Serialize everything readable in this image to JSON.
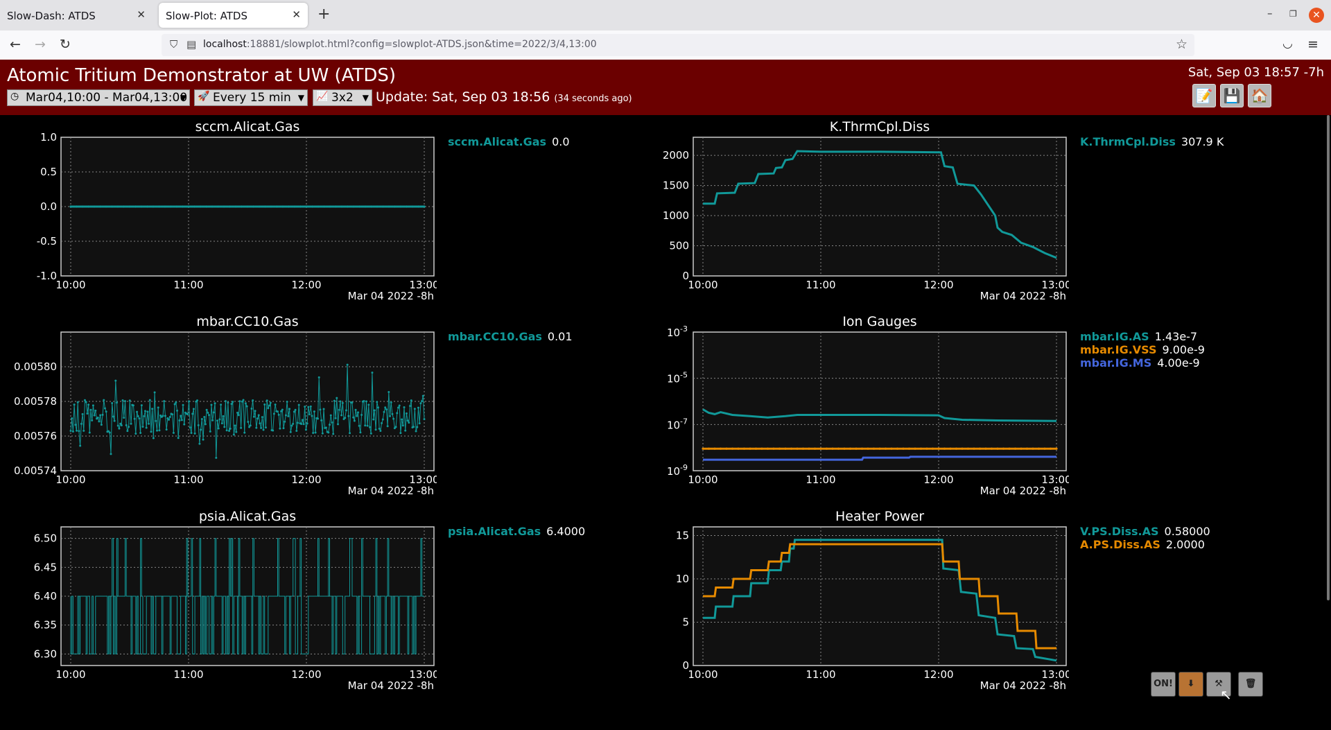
{
  "browser": {
    "tabs": [
      {
        "title": "Slow-Dash: ATDS",
        "active": false
      },
      {
        "title": "Slow-Plot: ATDS",
        "active": true
      }
    ],
    "new_tab": "+",
    "url_host": "localhost",
    "url_rest": ":18881/slowplot.html?config=slowplot-ATDS.json&time=2022/3/4,13:00",
    "icons": {
      "back": "←",
      "forward": "→",
      "reload": "↻",
      "shield": "⛉",
      "page": "▤",
      "star": "☆",
      "pocket": "◡",
      "menu": "≡",
      "close": "✕",
      "minimize": "–",
      "restore": "❐"
    }
  },
  "header": {
    "title": "Atomic Tritium Demonstrator at UW (ATDS)",
    "clock": "Sat, Sep 03 18:57 -7h",
    "time_range": "Mar04,10:00 - Mar04,13:00",
    "refresh": "Every 15 min",
    "layout": "3x2",
    "update": "Update: Sat, Sep 03 18:56",
    "update_ago": "(34 seconds ago)",
    "icons": {
      "clock": "◷",
      "rocket": "🚀",
      "chart": "📈",
      "edit": "📝",
      "save": "💾",
      "home": "🏠"
    }
  },
  "colors": {
    "teal": "#119999",
    "orange": "#e68a00",
    "blue": "#4466dd",
    "frame": "#cccccc",
    "grid": "#888888",
    "header_bg": "#6b0000"
  },
  "bottom_tools": {
    "on_label": "ON!",
    "icons": [
      "on-off",
      "download",
      "tools",
      "trash"
    ]
  },
  "plots": [
    {
      "id": "p1",
      "title": "sccm.Alicat.Gas",
      "footer": "Mar 04 2022 -8h",
      "xticks": [
        "10:00",
        "11:00",
        "12:00",
        "13:00"
      ],
      "yscale": "linear",
      "ylim": [
        -1.0,
        1.0
      ],
      "yticks": [
        "1.0",
        "0.5",
        "0.0",
        "-0.5",
        "-1.0"
      ],
      "legend": [
        {
          "name": "sccm.Alicat.Gas",
          "value": "0.0",
          "color": "#119999"
        }
      ],
      "chart_data": {
        "type": "line",
        "x_range": [
          "10:00",
          "13:00"
        ],
        "series": [
          {
            "name": "sccm.Alicat.Gas",
            "kind": "flat",
            "x": [
              0,
              3
            ],
            "y": [
              0.0,
              0.0
            ]
          }
        ]
      }
    },
    {
      "id": "p2",
      "title": "K.ThrmCpl.Diss",
      "footer": "Mar 04 2022 -8h",
      "xticks": [
        "10:00",
        "11:00",
        "12:00",
        "13:00"
      ],
      "yscale": "linear",
      "ylim": [
        0,
        2300
      ],
      "yticks": [
        "2000",
        "1500",
        "1000",
        "500",
        "0"
      ],
      "legend": [
        {
          "name": "K.ThrmCpl.Diss",
          "value": "307.9 K",
          "color": "#119999"
        }
      ],
      "chart_data": {
        "type": "line",
        "x_range": [
          "10:00",
          "13:00"
        ],
        "series": [
          {
            "name": "K.ThrmCpl.Diss",
            "kind": "line",
            "x": [
              0,
              0.1,
              0.12,
              0.27,
              0.3,
              0.44,
              0.47,
              0.6,
              0.62,
              0.67,
              0.7,
              0.76,
              0.8,
              1.0,
              1.5,
              2.02,
              2.05,
              2.12,
              2.16,
              2.3,
              2.36,
              2.48,
              2.5,
              2.54,
              2.62,
              2.7,
              2.8,
              2.9,
              3.0
            ],
            "y": [
              1200,
              1200,
              1370,
              1380,
              1530,
              1540,
              1690,
              1700,
              1790,
              1800,
              1920,
              1940,
              2070,
              2060,
              2060,
              2050,
              1820,
              1800,
              1530,
              1500,
              1350,
              1000,
              800,
              730,
              680,
              550,
              480,
              380,
              300
            ]
          }
        ]
      }
    },
    {
      "id": "p3",
      "title": "mbar.CC10.Gas",
      "footer": "Mar 04 2022 -8h",
      "xticks": [
        "10:00",
        "11:00",
        "12:00",
        "13:00"
      ],
      "yscale": "linear",
      "ylim": [
        0.00574,
        0.00582
      ],
      "yticks": [
        "0.00580",
        "0.00578",
        "0.00576",
        "0.00574"
      ],
      "legend": [
        {
          "name": "mbar.CC10.Gas",
          "value": "0.01",
          "color": "#119999"
        }
      ],
      "chart_data": {
        "type": "line",
        "x_range": [
          "10:00",
          "13:00"
        ],
        "series": [
          {
            "name": "mbar.CC10.Gas",
            "kind": "noise",
            "center": 0.005771,
            "spread": 1.8e-05,
            "points": 300
          }
        ]
      }
    },
    {
      "id": "p4",
      "title": "Ion Gauges",
      "footer": "Mar 04 2022 -8h",
      "xticks": [
        "10:00",
        "11:00",
        "12:00",
        "13:00"
      ],
      "yscale": "log",
      "ylim": [
        -9,
        -3
      ],
      "yticks": [
        "-3",
        "-5",
        "-7",
        "-9"
      ],
      "legend": [
        {
          "name": "mbar.IG.AS",
          "value": "1.43e-7",
          "color": "#119999"
        },
        {
          "name": "mbar.IG.VSS",
          "value": "9.00e-9",
          "color": "#e68a00"
        },
        {
          "name": "mbar.IG.MS",
          "value": "4.00e-9",
          "color": "#4466dd"
        }
      ],
      "chart_data": {
        "type": "line",
        "x_range": [
          "10:00",
          "13:00"
        ],
        "series": [
          {
            "name": "mbar.IG.AS",
            "kind": "line",
            "x": [
              0,
              0.05,
              0.1,
              0.15,
              0.25,
              0.4,
              0.55,
              0.7,
              0.8,
              1.0,
              1.5,
              2.0,
              2.05,
              2.2,
              2.5,
              3.0
            ],
            "y": [
              4.5e-07,
              3.2e-07,
              2.8e-07,
              3.4e-07,
              2.6e-07,
              2.3e-07,
              2e-07,
              2.3e-07,
              2.6e-07,
              2.6e-07,
              2.6e-07,
              2.5e-07,
              1.9e-07,
              1.6e-07,
              1.5e-07,
              1.43e-07
            ]
          },
          {
            "name": "mbar.IG.VSS",
            "kind": "flat",
            "x": [
              0,
              3
            ],
            "y": [
              9e-09,
              9e-09
            ]
          },
          {
            "name": "mbar.IG.MS",
            "kind": "line",
            "x": [
              0,
              1.35,
              1.36,
              1.75,
              1.76,
              3.0
            ],
            "y": [
              3e-09,
              3e-09,
              3.7e-09,
              3.7e-09,
              4e-09,
              4e-09
            ]
          }
        ]
      }
    },
    {
      "id": "p5",
      "title": "psia.Alicat.Gas",
      "footer": "Mar 04 2022 -8h",
      "xticks": [
        "10:00",
        "11:00",
        "12:00",
        "13:00"
      ],
      "yscale": "linear",
      "ylim": [
        6.28,
        6.52
      ],
      "yticks": [
        "6.50",
        "6.45",
        "6.40",
        "6.35",
        "6.30"
      ],
      "legend": [
        {
          "name": "psia.Alicat.Gas",
          "value": "6.4000",
          "color": "#119999"
        }
      ],
      "chart_data": {
        "type": "line",
        "x_range": [
          "10:00",
          "13:00"
        ],
        "series": [
          {
            "name": "psia.Alicat.Gas",
            "kind": "toggle",
            "base": 6.4,
            "up": 6.5,
            "down": 6.3,
            "points": 300
          }
        ]
      }
    },
    {
      "id": "p6",
      "title": "Heater Power",
      "footer": "Mar 04 2022 -8h",
      "xticks": [
        "10:00",
        "11:00",
        "12:00",
        "13:00"
      ],
      "yscale": "linear",
      "ylim": [
        0,
        16
      ],
      "yticks": [
        "15",
        "10",
        "5",
        "0"
      ],
      "legend": [
        {
          "name": "V.PS.Diss.AS",
          "value": "0.58000",
          "color": "#119999"
        },
        {
          "name": "A.PS.Diss.AS",
          "value": "2.0000",
          "color": "#e68a00"
        }
      ],
      "chart_data": {
        "type": "line",
        "x_range": [
          "10:00",
          "13:00"
        ],
        "series": [
          {
            "name": "V.PS.Diss.AS",
            "kind": "line",
            "x": [
              0,
              0.1,
              0.11,
              0.25,
              0.26,
              0.4,
              0.41,
              0.55,
              0.56,
              0.66,
              0.67,
              0.73,
              0.74,
              0.77,
              0.78,
              2.03,
              2.04,
              2.17,
              2.19,
              2.32,
              2.34,
              2.48,
              2.5,
              2.64,
              2.66,
              2.8,
              2.82,
              2.95,
              3.0
            ],
            "y": [
              5.5,
              5.5,
              6.8,
              6.8,
              8.0,
              8.0,
              9.5,
              9.5,
              11.0,
              11.0,
              12.0,
              12.0,
              13.5,
              13.5,
              14.5,
              14.5,
              11.2,
              11.0,
              8.5,
              8.3,
              5.8,
              5.5,
              3.6,
              3.4,
              2.0,
              1.9,
              1.0,
              0.7,
              0.58
            ]
          },
          {
            "name": "A.PS.Diss.AS",
            "kind": "line",
            "x": [
              0,
              0.1,
              0.11,
              0.25,
              0.26,
              0.4,
              0.41,
              0.55,
              0.56,
              0.66,
              0.67,
              0.73,
              0.74,
              0.77,
              0.78,
              2.03,
              2.04,
              2.17,
              2.18,
              2.34,
              2.35,
              2.5,
              2.51,
              2.66,
              2.67,
              2.82,
              2.83,
              3.0
            ],
            "y": [
              8.0,
              8.0,
              9.0,
              9.0,
              10.0,
              10.0,
              11.0,
              11.0,
              12.0,
              12.0,
              13.0,
              13.0,
              14.0,
              14.0,
              14.0,
              14.0,
              12.0,
              12.0,
              10.0,
              10.0,
              8.0,
              8.0,
              6.0,
              6.0,
              4.0,
              4.0,
              2.0,
              2.0
            ]
          }
        ]
      }
    }
  ]
}
